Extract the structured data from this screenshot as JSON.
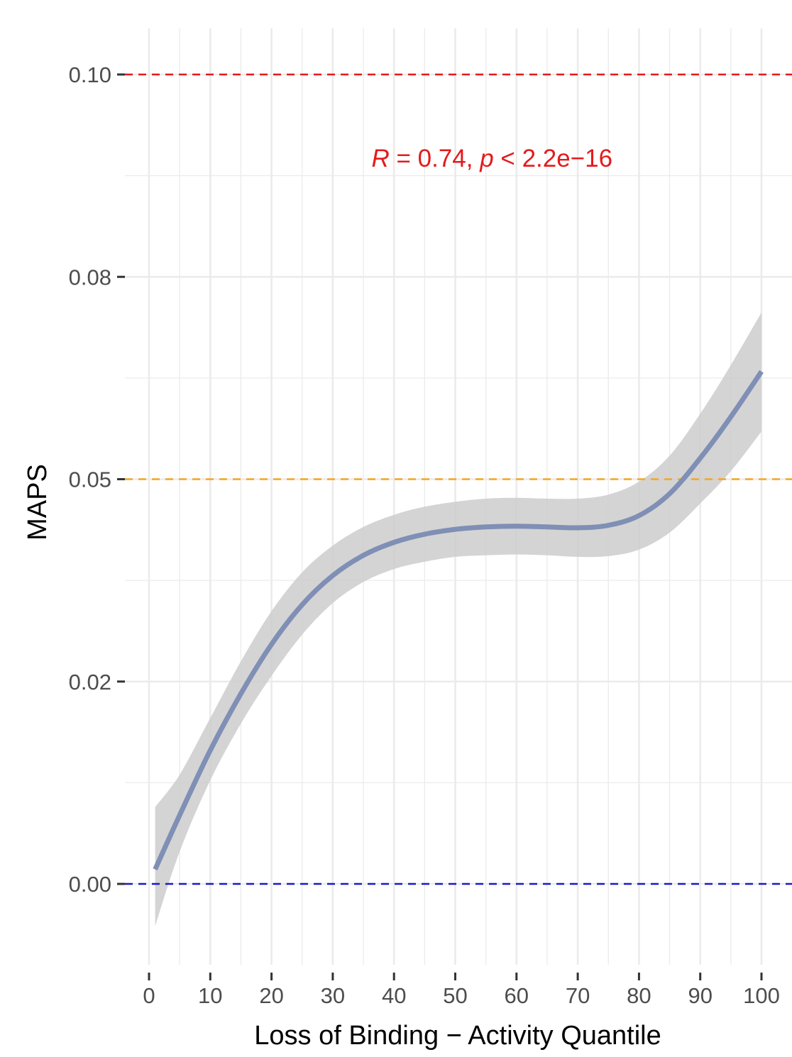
{
  "chart_data": {
    "type": "line",
    "title": "",
    "xlabel": "Loss of Binding − Activity Quantile",
    "ylabel": "MAPS",
    "xlim": [
      0,
      100
    ],
    "ylim": [
      -0.008,
      0.107
    ],
    "x_ticks": [
      0,
      10,
      20,
      30,
      40,
      50,
      60,
      70,
      80,
      90,
      100
    ],
    "y_ticks": [
      0.0,
      0.025,
      0.05,
      0.075,
      0.1
    ],
    "y_tick_labels": [
      "0.00",
      "0.02",
      "0.05",
      "0.08",
      "0.10"
    ],
    "grid": true,
    "legend": "none",
    "series": [
      {
        "x": [
          1,
          5,
          10,
          15,
          20,
          25,
          30,
          35,
          40,
          45,
          50,
          55,
          60,
          65,
          70,
          75,
          80,
          85,
          90,
          95,
          100
        ],
        "y": [
          0.0018,
          0.0085,
          0.0165,
          0.0235,
          0.0296,
          0.0345,
          0.0381,
          0.0406,
          0.0422,
          0.0432,
          0.0438,
          0.0441,
          0.0442,
          0.0441,
          0.044,
          0.0443,
          0.0455,
          0.0482,
          0.0526,
          0.0577,
          0.0633
        ],
        "y_lower": [
          -0.0052,
          0.004,
          0.0128,
          0.0198,
          0.0257,
          0.0308,
          0.0347,
          0.0373,
          0.0389,
          0.0398,
          0.0404,
          0.0406,
          0.0407,
          0.0406,
          0.0404,
          0.0405,
          0.0413,
          0.0434,
          0.047,
          0.051,
          0.0559
        ],
        "y_upper": [
          0.0095,
          0.0135,
          0.0205,
          0.0275,
          0.0337,
          0.0385,
          0.0418,
          0.0441,
          0.0456,
          0.0466,
          0.0472,
          0.0476,
          0.0477,
          0.0476,
          0.0476,
          0.0481,
          0.0497,
          0.0529,
          0.0581,
          0.0641,
          0.0706
        ]
      }
    ],
    "reference_lines": [
      {
        "y": 0.1,
        "color": "#e41a1c",
        "style": "dashed"
      },
      {
        "y": 0.05,
        "color": "#f5a623",
        "style": "dashed"
      },
      {
        "y": 0.0,
        "color": "#1a1acc",
        "style": "dashed"
      }
    ],
    "annotation": {
      "r_symbol": "R",
      "r_value": " = 0.74, ",
      "p_symbol": "p",
      "p_value": " < 2.2e−16",
      "x": 56,
      "y": 0.0886,
      "color": "#e41a1c"
    },
    "colors": {
      "line": "#7f8fb5",
      "band": "#cccccc",
      "grid": "#ebebeb",
      "tick": "#333333"
    }
  }
}
